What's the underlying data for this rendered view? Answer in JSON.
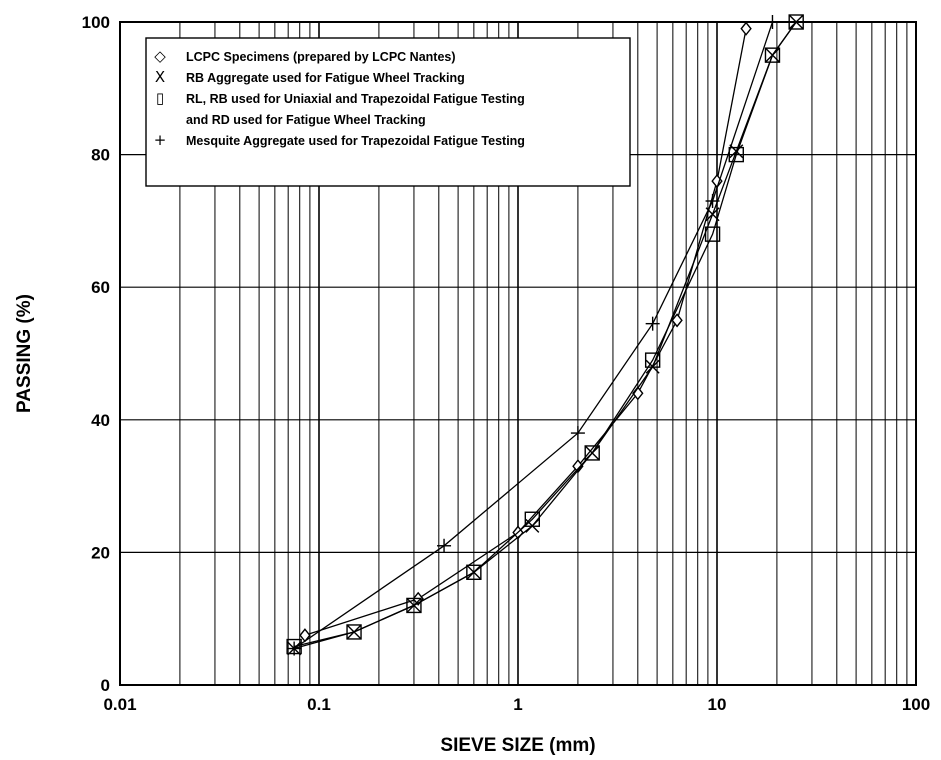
{
  "chart_data": {
    "type": "scatter",
    "title": "",
    "xlabel": "SIEVE SIZE (mm)",
    "ylabel": "PASSING (%)",
    "x_scale": "log",
    "xlim": [
      0.01,
      100
    ],
    "ylim": [
      0,
      100
    ],
    "x_ticks": [
      "0.01",
      "0.1",
      "1",
      "10",
      "100"
    ],
    "y_ticks": [
      "0",
      "20",
      "40",
      "60",
      "80",
      "100"
    ],
    "grid": true,
    "legend_position": "top-left",
    "series": [
      {
        "name": "LCPC Specimens  (prepared by LCPC Nantes)",
        "legend_symbol": "◇",
        "marker": "diamond",
        "x": [
          0.085,
          0.315,
          1.0,
          2.0,
          4.0,
          6.3,
          10.0,
          14.0
        ],
        "y": [
          7.5,
          13.0,
          23.0,
          33.0,
          44.0,
          55.0,
          76.0,
          99.0
        ]
      },
      {
        "name": "RB Aggregate used for Fatigue Wheel Tracking",
        "legend_symbol": "X",
        "marker": "x",
        "x": [
          0.075,
          0.15,
          0.3,
          0.6,
          1.18,
          2.36,
          4.75,
          9.5,
          12.5,
          19.0,
          25.0
        ],
        "y": [
          5.5,
          8.0,
          12.0,
          17.0,
          24.0,
          35.0,
          48.0,
          71.0,
          80.5,
          95.0,
          100.0
        ]
      },
      {
        "name": "RL, RB used for Uniaxial and Trapezoidal Fatigue Testing and RD used for Fatigue Wheel Tracking",
        "legend_symbol": "▯",
        "legend_lines": [
          "RL, RB used for Uniaxial and Trapezoidal Fatigue Testing",
          "and RD used for Fatigue Wheel Tracking"
        ],
        "marker": "square",
        "x": [
          0.075,
          0.15,
          0.3,
          0.6,
          1.18,
          2.36,
          4.75,
          9.5,
          12.5,
          19.0,
          25.0
        ],
        "y": [
          5.8,
          8.0,
          12.0,
          17.0,
          25.0,
          35.0,
          49.0,
          68.0,
          80.0,
          95.0,
          100.0
        ]
      },
      {
        "name": "Mesquite Aggregate used for Trapezoidal Fatigue Testing",
        "legend_symbol": "+",
        "marker": "plus",
        "x": [
          0.075,
          0.425,
          2.0,
          4.75,
          9.5,
          19.0
        ],
        "y": [
          5.5,
          21.0,
          38.0,
          54.5,
          73.0,
          100.0
        ]
      }
    ]
  }
}
